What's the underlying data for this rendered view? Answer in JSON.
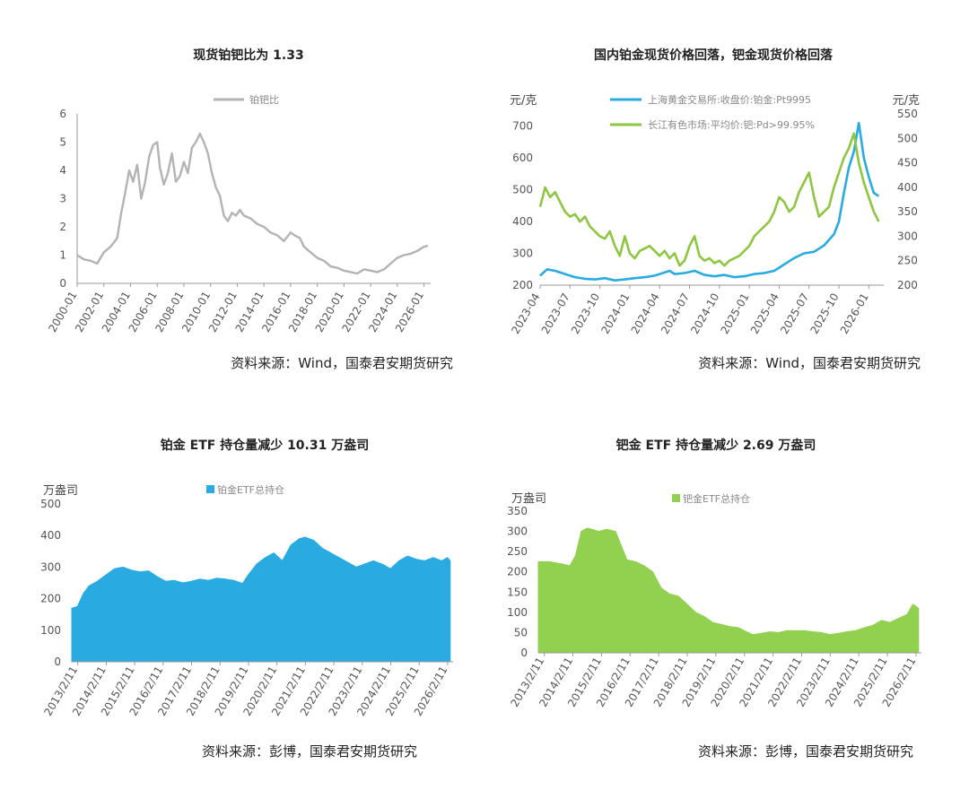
{
  "chart_data": [
    {
      "type": "line",
      "title": "现货铂钯比为 1.33",
      "legend": "铂钯比",
      "legend_position": "top",
      "color": "#b3b3b3",
      "y_ticks": [
        "0",
        "1",
        "2",
        "3",
        "4",
        "5",
        "6"
      ],
      "ylim": [
        0,
        6
      ],
      "x_ticks": [
        "2000-01",
        "2002-01",
        "2004-01",
        "2006-01",
        "2008-01",
        "2010-01",
        "2012-01",
        "2014-01",
        "2016-01",
        "2018-01",
        "2020-01",
        "2022-01",
        "2024-01",
        "2026-01"
      ],
      "xlim": [
        2000.0,
        2026.5
      ],
      "series": [
        {
          "name": "铂钯比",
          "x": [
            2000.0,
            2000.5,
            2001.0,
            2001.5,
            2002.0,
            2002.5,
            2003.0,
            2003.3,
            2003.6,
            2003.9,
            2004.2,
            2004.5,
            2004.8,
            2005.1,
            2005.4,
            2005.7,
            2006.0,
            2006.2,
            2006.5,
            2006.8,
            2007.1,
            2007.4,
            2007.7,
            2008.0,
            2008.3,
            2008.6,
            2008.9,
            2009.2,
            2009.5,
            2009.8,
            2010.1,
            2010.4,
            2010.7,
            2011.0,
            2011.3,
            2011.6,
            2011.9,
            2012.2,
            2012.5,
            2013.0,
            2013.5,
            2014.0,
            2014.5,
            2015.0,
            2015.5,
            2016.0,
            2016.3,
            2016.7,
            2017.0,
            2017.5,
            2018.0,
            2018.5,
            2019.0,
            2019.5,
            2020.0,
            2020.5,
            2021.0,
            2021.5,
            2022.0,
            2022.5,
            2023.0,
            2023.5,
            2024.0,
            2024.5,
            2025.0,
            2025.5,
            2026.0,
            2026.3
          ],
          "y": [
            1.0,
            0.85,
            0.8,
            0.7,
            1.1,
            1.3,
            1.6,
            2.5,
            3.2,
            4.0,
            3.6,
            4.2,
            3.0,
            3.6,
            4.5,
            4.9,
            5.0,
            4.1,
            3.5,
            3.9,
            4.6,
            3.6,
            3.8,
            4.3,
            3.9,
            4.8,
            5.0,
            5.3,
            5.0,
            4.6,
            3.9,
            3.4,
            3.1,
            2.4,
            2.2,
            2.5,
            2.4,
            2.6,
            2.4,
            2.3,
            2.1,
            2.0,
            1.8,
            1.7,
            1.5,
            1.8,
            1.7,
            1.6,
            1.3,
            1.1,
            0.9,
            0.8,
            0.6,
            0.55,
            0.45,
            0.4,
            0.35,
            0.5,
            0.45,
            0.4,
            0.5,
            0.7,
            0.9,
            1.0,
            1.05,
            1.15,
            1.3,
            1.33
          ]
        }
      ],
      "source": "资料来源：Wind，国泰君安期货研究"
    },
    {
      "type": "line",
      "title": "国内铂金现货价格回落，钯金现货价格回落",
      "left_unit": "元/克",
      "right_unit": "元/克",
      "left_ticks": [
        "200",
        "300",
        "400",
        "500",
        "600",
        "700"
      ],
      "left_lim": [
        200,
        730
      ],
      "right_ticks": [
        "200",
        "250",
        "300",
        "350",
        "400",
        "450",
        "500",
        "550"
      ],
      "right_lim": [
        200,
        550
      ],
      "x_ticks": [
        "2023-04",
        "2023-07",
        "2023-10",
        "2024-01",
        "2024-04",
        "2024-07",
        "2024-10",
        "2025-01",
        "2025-04",
        "2025-07",
        "2025-10",
        "2026-01"
      ],
      "xlim": [
        0,
        34.5
      ],
      "series": [
        {
          "name": "上海黄金交易所:收盘价:铂金:Pt9995",
          "axis": "left",
          "color": "#29abe2",
          "x": [
            0,
            0.7,
            1.5,
            2.5,
            3.5,
            4.5,
            5.5,
            6.5,
            7.5,
            8.5,
            9.5,
            10.5,
            11.5,
            12.5,
            13.0,
            13.5,
            14.5,
            15.5,
            16.5,
            17.5,
            18.5,
            19.5,
            20.5,
            21.5,
            22.5,
            23.5,
            24.5,
            25.5,
            26.5,
            27.5,
            28.5,
            29.5,
            30.0,
            30.5,
            31.0,
            31.5,
            32.0,
            32.5,
            33.0,
            33.5,
            34.0
          ],
          "y": [
            230,
            250,
            245,
            235,
            225,
            220,
            218,
            222,
            215,
            218,
            222,
            225,
            230,
            240,
            245,
            235,
            238,
            245,
            232,
            228,
            232,
            225,
            228,
            235,
            238,
            245,
            265,
            285,
            300,
            305,
            325,
            360,
            400,
            490,
            570,
            620,
            710,
            600,
            540,
            490,
            480
          ]
        },
        {
          "name": "长江有色市场:平均价:钯:Pd>99.95%",
          "axis": "right",
          "color": "#8dc63f",
          "x": [
            0,
            0.5,
            1.0,
            1.5,
            2.0,
            2.5,
            3.0,
            3.5,
            4.0,
            4.5,
            5.0,
            5.5,
            6.0,
            6.5,
            7.0,
            7.5,
            8.0,
            8.5,
            9.0,
            9.5,
            10.0,
            10.5,
            11.0,
            11.5,
            12.0,
            12.5,
            13.0,
            13.5,
            14.0,
            14.5,
            15.0,
            15.5,
            16.0,
            16.5,
            17.0,
            17.5,
            18.0,
            18.5,
            19.0,
            19.5,
            20.0,
            20.5,
            21.0,
            21.5,
            22.0,
            22.5,
            23.0,
            23.5,
            24.0,
            24.5,
            25.0,
            25.5,
            26.0,
            26.5,
            27.0,
            27.5,
            28.0,
            28.5,
            29.0,
            29.5,
            30.0,
            30.5,
            31.0,
            31.5,
            32.0,
            32.5,
            33.0,
            33.5,
            34.0
          ],
          "y": [
            360,
            400,
            380,
            390,
            370,
            350,
            340,
            345,
            330,
            340,
            320,
            310,
            300,
            295,
            310,
            280,
            260,
            300,
            265,
            255,
            270,
            275,
            280,
            270,
            260,
            270,
            255,
            265,
            240,
            250,
            280,
            300,
            260,
            250,
            255,
            245,
            250,
            240,
            250,
            255,
            260,
            270,
            280,
            300,
            310,
            320,
            330,
            350,
            380,
            370,
            350,
            360,
            390,
            410,
            430,
            380,
            340,
            350,
            360,
            400,
            430,
            460,
            480,
            510,
            450,
            410,
            380,
            350,
            330
          ]
        }
      ],
      "source": "资料来源：Wind，国泰君安期货研究"
    },
    {
      "type": "area",
      "title": "铂金 ETF 持仓量减少 10.31 万盎司",
      "unit": "万盎司",
      "legend": "铂金ETF总持仓",
      "color": "#29abe2",
      "y_ticks": [
        "0",
        "100",
        "200",
        "300",
        "400",
        "500"
      ],
      "ylim": [
        0,
        500
      ],
      "x_ticks": [
        "2013/2/11",
        "2014/2/11",
        "2015/2/11",
        "2016/2/11",
        "2017/2/11",
        "2018/2/11",
        "2019/2/11",
        "2020/2/11",
        "2021/2/11",
        "2022/2/11",
        "2023/2/11",
        "2024/2/11",
        "2025/2/11",
        "2026/2/11"
      ],
      "xlim": [
        2012.9,
        2026.3
      ],
      "series": [
        {
          "name": "铂金ETF总持仓",
          "x": [
            2012.9,
            2013.1,
            2013.3,
            2013.5,
            2013.8,
            2014.1,
            2014.4,
            2014.7,
            2015.0,
            2015.3,
            2015.6,
            2015.9,
            2016.2,
            2016.5,
            2016.8,
            2017.1,
            2017.4,
            2017.7,
            2018.0,
            2018.3,
            2018.6,
            2018.9,
            2019.1,
            2019.4,
            2019.7,
            2020.0,
            2020.3,
            2020.6,
            2020.9,
            2021.1,
            2021.4,
            2021.7,
            2022.0,
            2022.3,
            2022.6,
            2022.9,
            2023.2,
            2023.5,
            2023.8,
            2024.1,
            2024.4,
            2024.7,
            2025.0,
            2025.3,
            2025.6,
            2025.9,
            2026.1,
            2026.2
          ],
          "y": [
            170,
            175,
            215,
            240,
            255,
            275,
            295,
            300,
            290,
            285,
            288,
            270,
            255,
            258,
            250,
            255,
            262,
            258,
            265,
            262,
            258,
            248,
            275,
            310,
            330,
            345,
            320,
            370,
            390,
            395,
            385,
            360,
            345,
            330,
            315,
            300,
            310,
            320,
            310,
            295,
            320,
            335,
            325,
            320,
            330,
            320,
            330,
            320
          ]
        }
      ],
      "source": "资料来源：彭博，国泰君安期货研究"
    },
    {
      "type": "area",
      "title": "钯金 ETF 持仓量减少 2.69 万盎司",
      "unit": "万盎司",
      "legend": "钯金ETF总持仓",
      "color": "#92d050",
      "y_ticks": [
        "0",
        "50",
        "100",
        "150",
        "200",
        "250",
        "300",
        "350"
      ],
      "ylim": [
        0,
        350
      ],
      "x_ticks": [
        "2013/2/11",
        "2014/2/11",
        "2015/2/11",
        "2016/2/11",
        "2017/2/11",
        "2018/2/11",
        "2019/2/11",
        "2020/2/11",
        "2021/2/11",
        "2022/2/11",
        "2023/2/11",
        "2024/2/11",
        "2025/2/11",
        "2026/2/11"
      ],
      "xlim": [
        2012.9,
        2026.3
      ],
      "series": [
        {
          "name": "钯金ETF总持仓",
          "x": [
            2012.9,
            2013.3,
            2013.7,
            2014.0,
            2014.2,
            2014.4,
            2014.6,
            2014.8,
            2015.0,
            2015.3,
            2015.6,
            2015.8,
            2016.0,
            2016.3,
            2016.6,
            2016.9,
            2017.2,
            2017.5,
            2017.8,
            2018.1,
            2018.4,
            2018.7,
            2019.0,
            2019.3,
            2019.6,
            2019.9,
            2020.1,
            2020.4,
            2020.7,
            2021.0,
            2021.3,
            2021.6,
            2021.9,
            2022.2,
            2022.5,
            2022.8,
            2023.1,
            2023.4,
            2023.7,
            2024.0,
            2024.3,
            2024.6,
            2024.9,
            2025.2,
            2025.5,
            2025.8,
            2026.0,
            2026.2
          ],
          "y": [
            225,
            225,
            220,
            215,
            240,
            300,
            308,
            305,
            300,
            305,
            300,
            265,
            230,
            225,
            215,
            200,
            160,
            145,
            140,
            120,
            100,
            90,
            75,
            70,
            65,
            62,
            55,
            45,
            48,
            52,
            50,
            55,
            55,
            55,
            52,
            50,
            45,
            48,
            52,
            55,
            62,
            68,
            80,
            75,
            85,
            95,
            120,
            110
          ]
        }
      ],
      "source": "资料来源：彭博，国泰君安期货研究"
    }
  ]
}
